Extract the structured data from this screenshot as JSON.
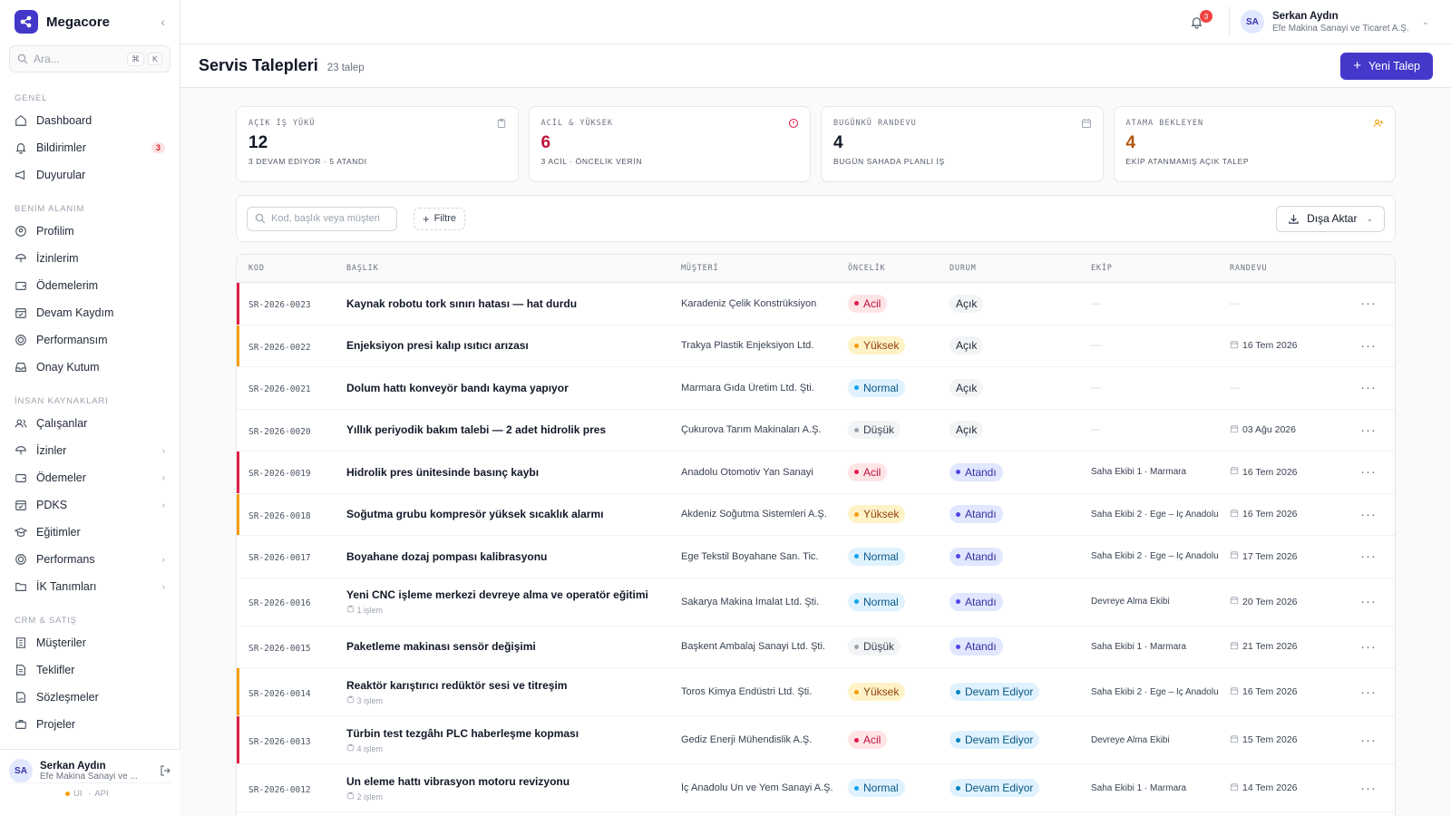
{
  "app": {
    "name": "Megacore"
  },
  "search": {
    "placeholder": "Ara...",
    "kbd1": "⌘",
    "kbd2": "K"
  },
  "sidebar": {
    "sections": [
      {
        "title": "GENEL",
        "items": [
          {
            "label": "Dashboard",
            "icon": "home-icon"
          },
          {
            "label": "Bildirimler",
            "icon": "bell-icon",
            "badge": "3"
          },
          {
            "label": "Duyurular",
            "icon": "megaphone-icon"
          }
        ]
      },
      {
        "title": "BENİM ALANIM",
        "items": [
          {
            "label": "Profilim",
            "icon": "user-circle-icon"
          },
          {
            "label": "İzinlerim",
            "icon": "umbrella-icon"
          },
          {
            "label": "Ödemelerim",
            "icon": "wallet-icon"
          },
          {
            "label": "Devam Kaydım",
            "icon": "calendar-check-icon"
          },
          {
            "label": "Performansım",
            "icon": "target-icon"
          },
          {
            "label": "Onay Kutum",
            "icon": "inbox-icon"
          }
        ]
      },
      {
        "title": "İNSAN KAYNAKLARI",
        "items": [
          {
            "label": "Çalışanlar",
            "icon": "users-icon"
          },
          {
            "label": "İzinler",
            "icon": "umbrella-icon",
            "chevron": true
          },
          {
            "label": "Ödemeler",
            "icon": "wallet-icon",
            "chevron": true
          },
          {
            "label": "PDKS",
            "icon": "calendar-check-icon",
            "chevron": true
          },
          {
            "label": "Eğitimler",
            "icon": "graduation-cap-icon"
          },
          {
            "label": "Performans",
            "icon": "target-icon",
            "chevron": true
          },
          {
            "label": "İK Tanımları",
            "icon": "folder-icon",
            "chevron": true
          }
        ]
      },
      {
        "title": "CRM & SATIŞ",
        "items": [
          {
            "label": "Müşteriler",
            "icon": "building-icon"
          },
          {
            "label": "Teklifler",
            "icon": "file-text-icon"
          },
          {
            "label": "Sözleşmeler",
            "icon": "file-signature-icon"
          },
          {
            "label": "Projeler",
            "icon": "briefcase-icon"
          }
        ]
      }
    ]
  },
  "user": {
    "initials": "SA",
    "name": "Serkan Aydın",
    "company": "Efe Makina Sanayi ve Ticaret A.Ş.",
    "company_short": "Efe Makina Sanayi ve ...",
    "status_ui": "UI",
    "status_api": "API"
  },
  "notifications": {
    "count": "3"
  },
  "page": {
    "title": "Servis Talepleri",
    "count": "23 talep",
    "new_button": "Yeni Talep"
  },
  "stats": [
    {
      "label": "AÇIK İŞ YÜKÜ",
      "value": "12",
      "sub": "3 DEVAM EDİYOR · 5 ATANDI",
      "color": "#111827",
      "icon": "clipboard-icon",
      "icon_color": "#9ca3af"
    },
    {
      "label": "ACİL & YÜKSEK",
      "value": "6",
      "sub": "3 ACİL · ÖNCELİK VERİN",
      "color": "#be123c",
      "icon": "alert-circle-icon",
      "icon_color": "#e11d48"
    },
    {
      "label": "BUGÜNKÜ RANDEVU",
      "value": "4",
      "sub": "BUGÜN SAHADA PLANLI İŞ",
      "color": "#111827",
      "icon": "calendar-icon",
      "icon_color": "#9ca3af"
    },
    {
      "label": "ATAMA BEKLEYEN",
      "value": "4",
      "sub": "EKİP ATANMAMIŞ AÇIK TALEP",
      "color": "#b45309",
      "icon": "user-plus-icon",
      "icon_color": "#f59e0b"
    }
  ],
  "toolbar": {
    "search_placeholder": "Kod, başlık veya müşteri",
    "filter": "Filtre",
    "export": "Dışa Aktar"
  },
  "table": {
    "headers": [
      "KOD",
      "BAŞLIK",
      "MÜŞTERİ",
      "ÖNCELİK",
      "DURUM",
      "EKİP",
      "RANDEVU"
    ],
    "rows": [
      {
        "kod": "SR-2026-0023",
        "title": "Kaynak robotu tork sınırı hatası — hat durdu",
        "note": "",
        "customer": "Karadeniz Çelik Konstrüksiyon",
        "priority": "Acil",
        "status": "Açık",
        "team": "—",
        "date": "—"
      },
      {
        "kod": "SR-2026-0022",
        "title": "Enjeksiyon presi kalıp ısıtıcı arızası",
        "note": "",
        "customer": "Trakya Plastik Enjeksiyon Ltd.",
        "priority": "Yüksek",
        "status": "Açık",
        "team": "—",
        "date": "16 Tem 2026"
      },
      {
        "kod": "SR-2026-0021",
        "title": "Dolum hattı konveyör bandı kayma yapıyor",
        "note": "",
        "customer": "Marmara Gıda Üretim Ltd. Şti.",
        "priority": "Normal",
        "status": "Açık",
        "team": "—",
        "date": "—"
      },
      {
        "kod": "SR-2026-0020",
        "title": "Yıllık periyodik bakım talebi — 2 adet hidrolik pres",
        "note": "",
        "customer": "Çukurova Tarım Makinaları A.Ş.",
        "priority": "Düşük",
        "status": "Açık",
        "team": "—",
        "date": "03 Ağu 2026"
      },
      {
        "kod": "SR-2026-0019",
        "title": "Hidrolik pres ünitesinde basınç kaybı",
        "note": "",
        "customer": "Anadolu Otomotiv Yan Sanayi",
        "priority": "Acil",
        "status": "Atandı",
        "team": "Saha Ekibi 1 · Marmara",
        "date": "16 Tem 2026"
      },
      {
        "kod": "SR-2026-0018",
        "title": "Soğutma grubu kompresör yüksek sıcaklık alarmı",
        "note": "",
        "customer": "Akdeniz Soğutma Sistemleri A.Ş.",
        "priority": "Yüksek",
        "status": "Atandı",
        "team": "Saha Ekibi 2 · Ege – İç Anadolu",
        "date": "16 Tem 2026"
      },
      {
        "kod": "SR-2026-0017",
        "title": "Boyahane dozaj pompası kalibrasyonu",
        "note": "",
        "customer": "Ege Tekstil Boyahane San. Tic.",
        "priority": "Normal",
        "status": "Atandı",
        "team": "Saha Ekibi 2 · Ege – İç Anadolu",
        "date": "17 Tem 2026"
      },
      {
        "kod": "SR-2026-0016",
        "title": "Yeni CNC işleme merkezi devreye alma ve operatör eğitimi",
        "note": "1 işlem",
        "customer": "Sakarya Makina İmalat Ltd. Şti.",
        "priority": "Normal",
        "status": "Atandı",
        "team": "Devreye Alma Ekibi",
        "date": "20 Tem 2026"
      },
      {
        "kod": "SR-2026-0015",
        "title": "Paketleme makinası sensör değişimi",
        "note": "",
        "customer": "Başkent Ambalaj Sanayi Ltd. Şti.",
        "priority": "Düşük",
        "status": "Atandı",
        "team": "Saha Ekibi 1 · Marmara",
        "date": "21 Tem 2026"
      },
      {
        "kod": "SR-2026-0014",
        "title": "Reaktör karıştırıcı redüktör sesi ve titreşim",
        "note": "3 işlem",
        "customer": "Toros Kimya Endüstri Ltd. Şti.",
        "priority": "Yüksek",
        "status": "Devam Ediyor",
        "team": "Saha Ekibi 2 · Ege – İç Anadolu",
        "date": "16 Tem 2026"
      },
      {
        "kod": "SR-2026-0013",
        "title": "Türbin test tezgâhı PLC haberleşme kopması",
        "note": "4 işlem",
        "customer": "Gediz Enerji Mühendislik A.Ş.",
        "priority": "Acil",
        "status": "Devam Ediyor",
        "team": "Devreye Alma Ekibi",
        "date": "15 Tem 2026"
      },
      {
        "kod": "SR-2026-0012",
        "title": "Un eleme hattı vibrasyon motoru revizyonu",
        "note": "2 işlem",
        "customer": "İç Anadolu Un ve Yem Sanayi A.Ş.",
        "priority": "Normal",
        "status": "Devam Ediyor",
        "team": "Saha Ekibi 1 · Marmara",
        "date": "14 Tem 2026"
      }
    ]
  },
  "colors": {
    "accent": "#4338ca",
    "priority": {
      "Acil": {
        "bg": "#ffe4e6",
        "fg": "#be123c",
        "dot": "#e11d48",
        "bar": "#e11d48"
      },
      "Yüksek": {
        "bg": "#fef3c7",
        "fg": "#92400e",
        "dot": "#f59e0b",
        "bar": "#f59e0b"
      },
      "Normal": {
        "bg": "#e0f2fe",
        "fg": "#075985",
        "dot": "#0ea5e9",
        "bar": ""
      },
      "Düşük": {
        "bg": "#f3f4f6",
        "fg": "#374151",
        "dot": "#9ca3af",
        "bar": ""
      }
    },
    "status": {
      "Açık": {
        "bg": "#f3f4f6",
        "fg": "#1f2937",
        "dot": ""
      },
      "Atandı": {
        "bg": "#e0e7ff",
        "fg": "#3730a3",
        "dot": "#4f46e5"
      },
      "Devam Ediyor": {
        "bg": "#e0f2fe",
        "fg": "#075985",
        "dot": "#0284c7"
      }
    }
  }
}
